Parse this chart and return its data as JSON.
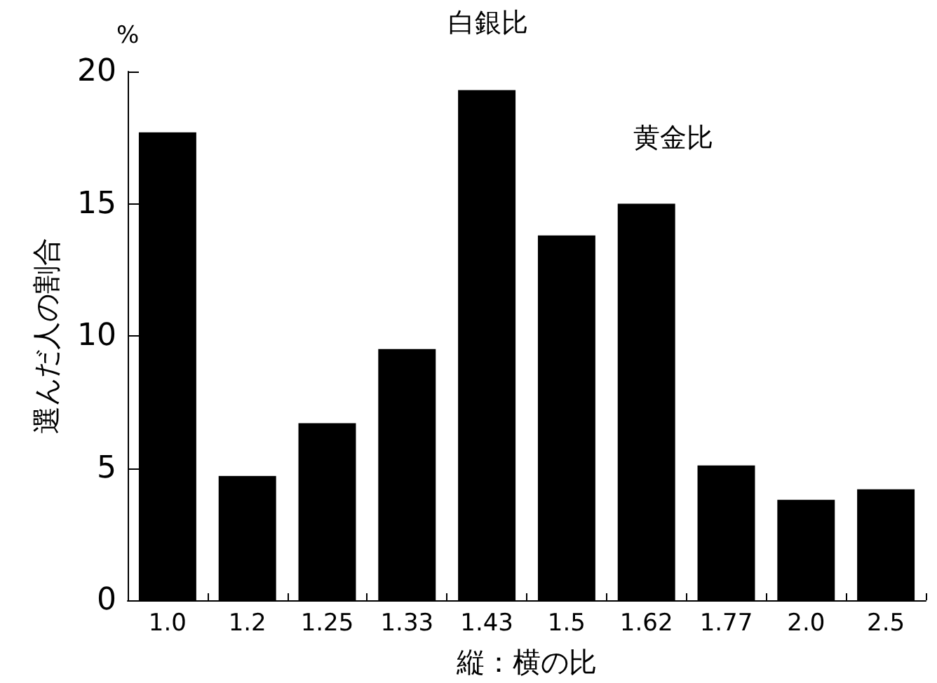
{
  "chart_data": {
    "type": "bar",
    "xlabel": "縦：横の比",
    "ylabel": "選んだ人の割合",
    "categories": [
      "1.0",
      "1.2",
      "1.25",
      "1.33",
      "1.43",
      "1.5",
      "1.62",
      "1.77",
      "2.0",
      "2.5"
    ],
    "values": [
      17.7,
      4.7,
      6.7,
      9.5,
      19.3,
      13.8,
      15.0,
      5.1,
      3.8,
      4.2
    ],
    "color": "#000000",
    "ylim": [
      0,
      20
    ],
    "yticks": [
      0,
      5,
      10,
      15,
      20
    ],
    "grid": false,
    "annotations": [
      "%",
      "白銀比",
      "黄金比"
    ]
  }
}
